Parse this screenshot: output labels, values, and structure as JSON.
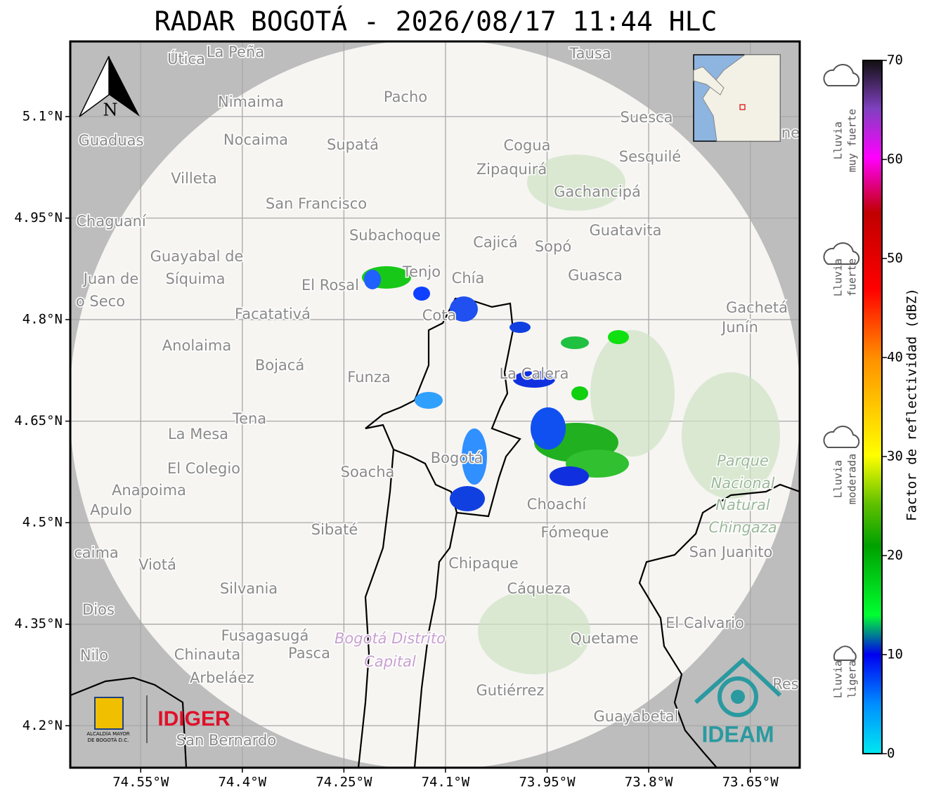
{
  "title": "RADAR BOGOTÁ - 2026/08/17 11:44 HLC",
  "map": {
    "lon_lim": [
      -74.654,
      -73.577
    ],
    "lat_lim": [
      4.138,
      5.211
    ],
    "lon_ticks": [
      {
        "value": -74.55,
        "label": "74.55°W"
      },
      {
        "value": -74.4,
        "label": "74.4°W"
      },
      {
        "value": -74.25,
        "label": "74.25°W"
      },
      {
        "value": -74.1,
        "label": "74.1°W"
      },
      {
        "value": -73.95,
        "label": "73.95°W"
      },
      {
        "value": -73.8,
        "label": "73.8°W"
      },
      {
        "value": -73.65,
        "label": "73.65°W"
      }
    ],
    "lat_ticks": [
      {
        "value": 5.1,
        "label": "5.1°N"
      },
      {
        "value": 4.95,
        "label": "4.95°N"
      },
      {
        "value": 4.8,
        "label": "4.8°N"
      },
      {
        "value": 4.65,
        "label": "4.65°N"
      },
      {
        "value": 4.5,
        "label": "4.5°N"
      },
      {
        "value": 4.35,
        "label": "4.35°N"
      },
      {
        "value": 4.2,
        "label": "4.2°N"
      }
    ],
    "north_label": "N",
    "places": [
      "Útica",
      "La Peña",
      "Tausa",
      "Pacho",
      "Nimaima",
      "Suesca",
      "Guaduas",
      "Nocaima",
      "Supatá",
      "Cogua",
      "Sesquilé",
      "Zipaquirá",
      "Villeta",
      "Gachancipá",
      "San Francisco",
      "Chaguaní",
      "Guatavita",
      "Subachoque",
      "Cajicá",
      "Sopó",
      "Guayabal de",
      "Síquima",
      "Tenjo",
      "Chía",
      "Guasca",
      "El Rosal",
      "Juan de",
      "o Seco",
      "Facatativá",
      "Cota",
      "Gachetá",
      "Junín",
      "Anolaima",
      "Bojacá",
      "Funza",
      "La Calera",
      "Tena",
      "La Mesa",
      "Bogotá",
      "Parque",
      "Nacional",
      "Natural",
      "Chingaza",
      "El Colegio",
      "Soacha",
      "Anapoima",
      "Apulo",
      "Choachí",
      "Sibaté",
      "Fómeque",
      "caima",
      "Viotá",
      "San Juanito",
      "Chipaque",
      "Silvania",
      "Cáqueza",
      "Dios",
      "El Calvario",
      "Fusagasugá",
      "Bogotá Distrito",
      "Capital",
      "Quetame",
      "Nilo",
      "Chinauta",
      "Pasca",
      "Arbeláez",
      "Gutiérrez",
      "Res",
      "Guayabetal",
      "San Bernardo",
      "ne"
    ]
  },
  "colorbar": {
    "label": "Factor de reflectividad (dBZ)",
    "lim": [
      0,
      70
    ],
    "ticks": [
      0,
      10,
      20,
      30,
      40,
      50,
      60,
      70
    ],
    "categories": [
      [
        "Lluvia",
        "muy fuerte"
      ],
      [
        "Lluvia",
        "fuerte"
      ],
      [
        "Lluvia",
        "moderada"
      ],
      [
        "Lluvia",
        "ligera"
      ]
    ]
  },
  "logos": {
    "alcaldia": [
      "ALCALDÍA MAYOR",
      "DE BOGOTÁ D.C."
    ],
    "idiger": "IDIGER",
    "ideam": "IDEAM"
  }
}
